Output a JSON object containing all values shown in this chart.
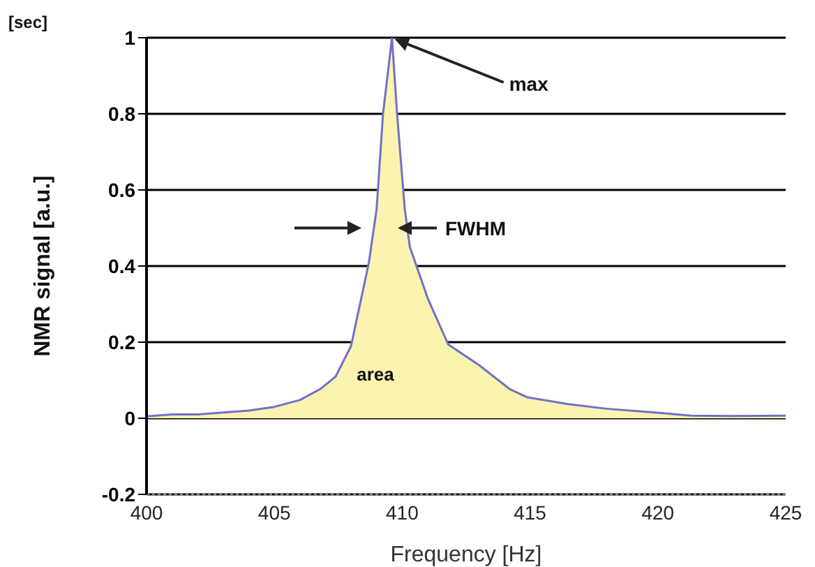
{
  "chart_data": {
    "type": "area",
    "xlabel": "Frequency [Hz]",
    "ylabel": "NMR signal [a.u.]",
    "x": [
      400,
      401,
      402,
      403,
      404,
      405,
      406,
      406.8,
      407.4,
      408,
      408.7,
      409,
      409.25,
      409.6,
      409.8,
      410.1,
      410.3,
      411,
      411.8,
      413,
      414.2,
      414.9,
      416.5,
      418,
      419.9,
      421.3,
      423,
      425
    ],
    "series": [
      {
        "color": "#fbf3b0",
        "values": [
          0.005,
          0.01,
          0.01,
          0.015,
          0.02,
          0.03,
          0.048,
          0.077,
          0.11,
          0.19,
          0.41,
          0.55,
          0.8,
          1,
          0.8,
          0.55,
          0.45,
          0.315,
          0.194,
          0.14,
          0.077,
          0.055,
          0.037,
          0.025,
          0.015,
          0.007,
          0.006,
          0.007
        ]
      },
      {
        "type": "line",
        "color": "#7070c8",
        "values": [
          0.005,
          0.01,
          0.01,
          0.015,
          0.02,
          0.03,
          0.048,
          0.077,
          0.11,
          0.19,
          0.41,
          0.55,
          0.8,
          1,
          0.8,
          0.55,
          0.45,
          0.315,
          0.194,
          0.14,
          0.077,
          0.055,
          0.037,
          0.025,
          0.015,
          0.007,
          0.006,
          0.007
        ]
      }
    ],
    "xlim": [
      400,
      425
    ],
    "xticks": [
      400,
      405,
      410,
      415,
      420,
      425
    ],
    "ylim": [
      -0.2,
      1
    ],
    "yticks": [
      -0.2,
      0,
      0.2,
      0.4,
      0.6,
      0.8,
      1
    ],
    "grid": "y",
    "annotations": [
      {
        "text": "max",
        "x": 409.6,
        "y": 1
      },
      "FWHM",
      "area",
      "[sec]"
    ]
  }
}
